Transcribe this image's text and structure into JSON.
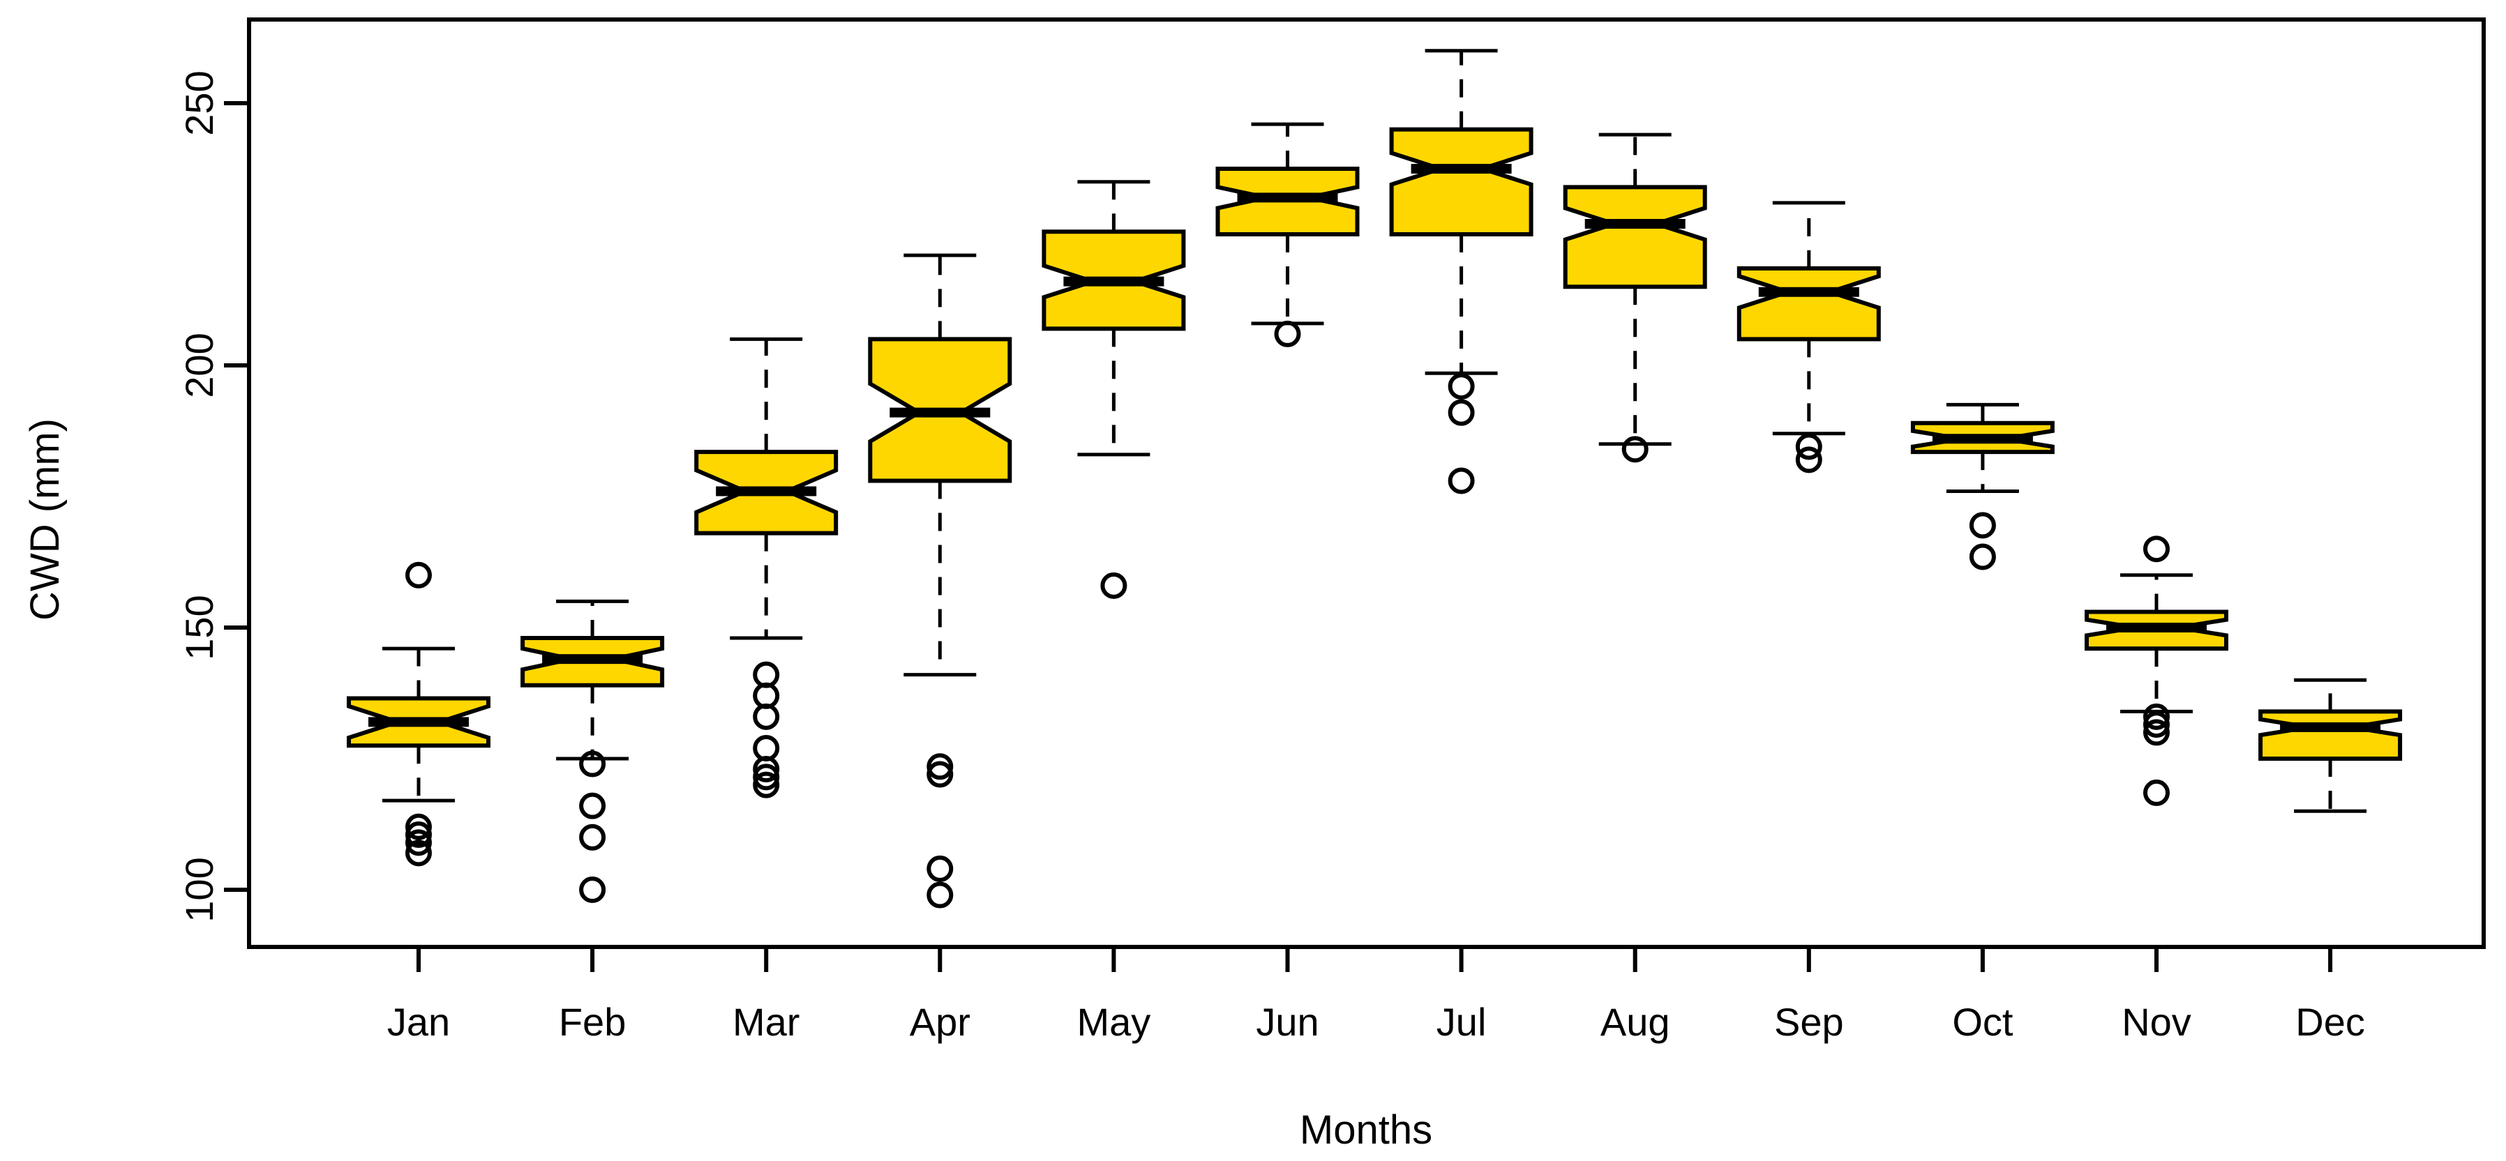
{
  "figure": {
    "background": "#ffffff",
    "frame_color": "#000000"
  },
  "chart_data": {
    "type": "boxplot",
    "notched": true,
    "title": "",
    "xlabel": "Months",
    "ylabel": "CWD (mm)",
    "grid": false,
    "legend": "none",
    "y_ticks": [
      100,
      150,
      200,
      250
    ],
    "ylim": [
      89,
      266
    ],
    "box_fill": "#FFD700",
    "line_color": "#000000",
    "categories": [
      "Jan",
      "Feb",
      "Mar",
      "Apr",
      "May",
      "Jun",
      "Jul",
      "Aug",
      "Sep",
      "Oct",
      "Nov",
      "Dec"
    ],
    "boxes": [
      {
        "label": "Jan",
        "whisker_low": 117,
        "q1": 127.5,
        "median": 132,
        "q3": 136.5,
        "whisker_high": 146,
        "notch_low": 129,
        "notch_high": 135,
        "outliers": [
          160,
          112,
          110.5,
          109,
          107
        ]
      },
      {
        "label": "Feb",
        "whisker_low": 125,
        "q1": 139,
        "median": 144,
        "q3": 148,
        "whisker_high": 155,
        "notch_low": 142,
        "notch_high": 146,
        "outliers": [
          124,
          116,
          110,
          100
        ]
      },
      {
        "label": "Mar",
        "whisker_low": 148,
        "q1": 168,
        "median": 176,
        "q3": 183.5,
        "whisker_high": 205,
        "notch_low": 172,
        "notch_high": 180,
        "outliers": [
          141,
          137,
          133,
          127,
          123,
          121.5,
          120
        ]
      },
      {
        "label": "Apr",
        "whisker_low": 141,
        "q1": 178,
        "median": 191,
        "q3": 205,
        "whisker_high": 221,
        "notch_low": 185.5,
        "notch_high": 196.5,
        "outliers": [
          123.5,
          122,
          104,
          99
        ]
      },
      {
        "label": "May",
        "whisker_low": 183,
        "q1": 207,
        "median": 216,
        "q3": 225.5,
        "whisker_high": 235,
        "notch_low": 213,
        "notch_high": 219,
        "outliers": [
          158
        ]
      },
      {
        "label": "Jun",
        "whisker_low": 208,
        "q1": 225,
        "median": 232,
        "q3": 237.5,
        "whisker_high": 246,
        "notch_low": 230,
        "notch_high": 234,
        "outliers": [
          206
        ]
      },
      {
        "label": "Jul",
        "whisker_low": 198.5,
        "q1": 225,
        "median": 237.5,
        "q3": 245,
        "whisker_high": 260,
        "notch_low": 234.5,
        "notch_high": 240.5,
        "outliers": [
          196,
          191,
          178
        ]
      },
      {
        "label": "Aug",
        "whisker_low": 185,
        "q1": 215,
        "median": 227,
        "q3": 234,
        "whisker_high": 244,
        "notch_low": 224,
        "notch_high": 230,
        "outliers": [
          184
        ]
      },
      {
        "label": "Sep",
        "whisker_low": 187,
        "q1": 205,
        "median": 214,
        "q3": 218.5,
        "whisker_high": 231,
        "notch_low": 211,
        "notch_high": 217,
        "outliers": [
          184.5,
          182
        ]
      },
      {
        "label": "Oct",
        "whisker_low": 176,
        "q1": 183.5,
        "median": 186,
        "q3": 189,
        "whisker_high": 192.5,
        "notch_low": 184.5,
        "notch_high": 187.5,
        "outliers": [
          169.5,
          163.5
        ]
      },
      {
        "label": "Nov",
        "whisker_low": 134,
        "q1": 146,
        "median": 150,
        "q3": 153,
        "whisker_high": 160,
        "notch_low": 148.5,
        "notch_high": 151.5,
        "outliers": [
          165,
          133,
          131.5,
          130,
          118.5
        ]
      },
      {
        "label": "Dec",
        "whisker_low": 115,
        "q1": 125,
        "median": 131,
        "q3": 134,
        "whisker_high": 140,
        "notch_low": 129.5,
        "notch_high": 132.5,
        "outliers": []
      }
    ]
  }
}
